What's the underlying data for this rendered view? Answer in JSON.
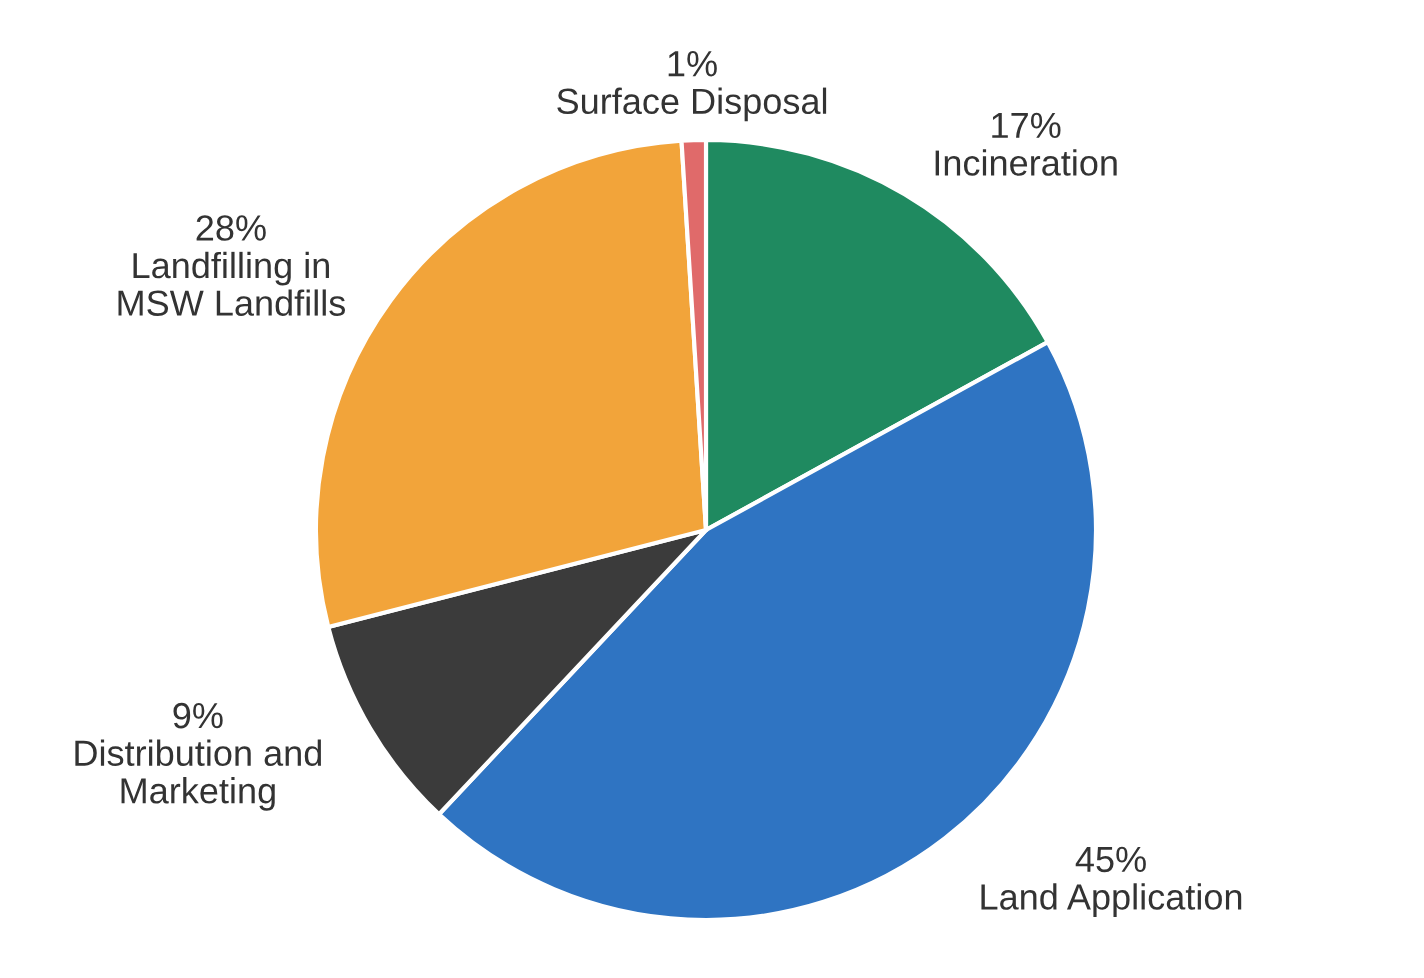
{
  "chart_data": {
    "type": "pie",
    "categories": [
      "Incineration",
      "Land Application",
      "Distribution and\nMarketing",
      "Landfilling in\nMSW Landfills",
      "Surface Disposal"
    ],
    "values": [
      17,
      45,
      9,
      28,
      1
    ],
    "value_labels": [
      "17%",
      "45%",
      "9%",
      "28%",
      "1%"
    ],
    "colors": [
      "#1f8a60",
      "#2f74c2",
      "#3b3b3b",
      "#f2a43a",
      "#e06a6a"
    ]
  }
}
